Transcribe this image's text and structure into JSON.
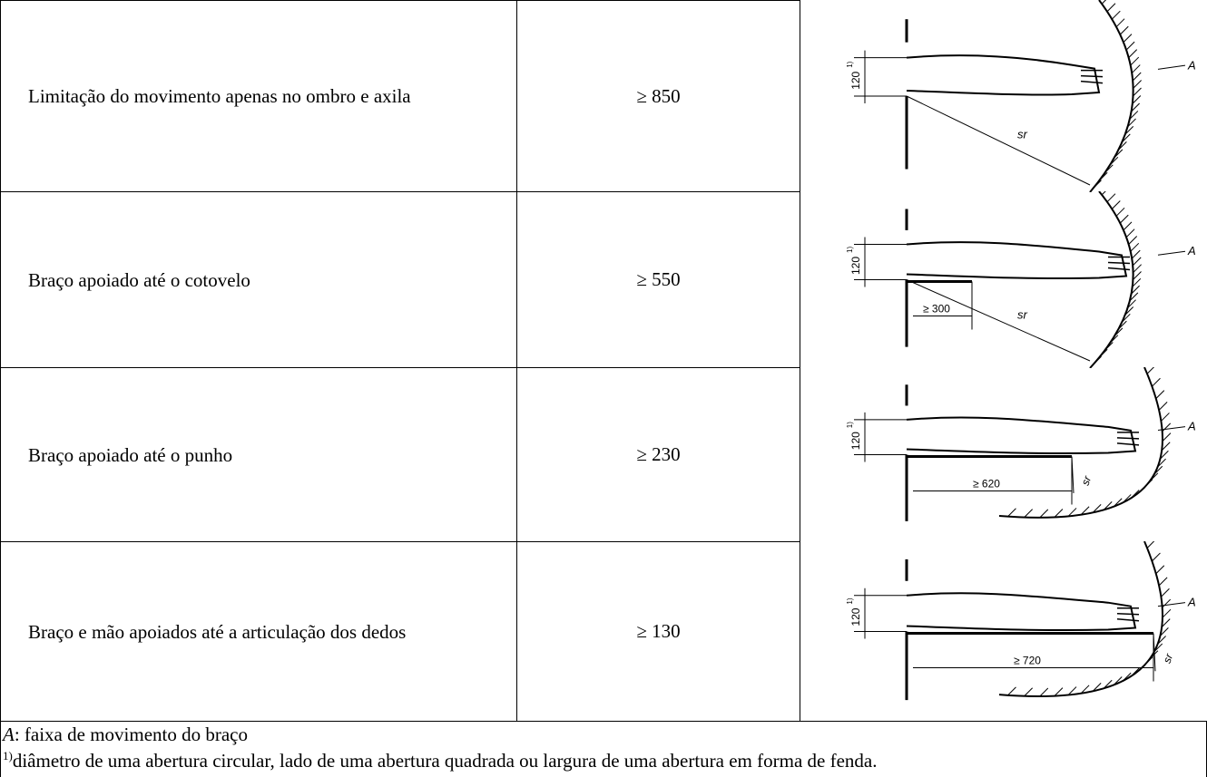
{
  "table": {
    "rows": [
      {
        "description": "Limitação do movimento apenas no ombro e axila",
        "value": "≥ 850",
        "figure": {
          "height_label": "120",
          "height_note": "1)",
          "reach_label": "sr",
          "zone_label": "A"
        }
      },
      {
        "description": "Braço apoiado até o cotovelo",
        "value": "≥ 550",
        "figure": {
          "height_label": "120",
          "height_note": "1)",
          "reach_label": "sr",
          "zone_label": "A",
          "support_label": "≥ 300"
        }
      },
      {
        "description": "Braço apoiado até o punho",
        "value": "≥ 230",
        "figure": {
          "height_label": "120",
          "height_note": "1)",
          "reach_label": "sr",
          "zone_label": "A",
          "support_label": "≥ 620"
        }
      },
      {
        "description": "Braço e mão apoiados até a articulação dos dedos",
        "value": "≥ 130",
        "figure": {
          "height_label": "120",
          "height_note": "1)",
          "reach_label": "sr",
          "zone_label": "A",
          "support_label": "≥ 720"
        }
      }
    ]
  },
  "notes": {
    "legend_symbol": "A",
    "legend_text": ": faixa de movimento do braço",
    "footnote_mark": "1)",
    "footnote_text": "diâmetro de uma abertura circular, lado de uma abertura quadrada ou largura de uma abertura em forma de fenda."
  }
}
